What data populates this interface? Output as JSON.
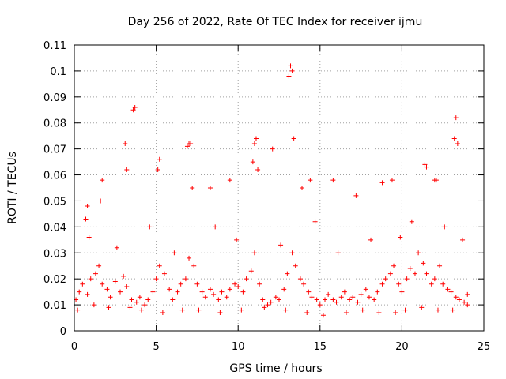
{
  "chart_data": {
    "type": "scatter",
    "title": "Day 256 of 2022, Rate Of TEC Index for receiver ijmu",
    "xlabel": "GPS time / hours",
    "ylabel": "ROTI / TECUs",
    "xlim": [
      0,
      25
    ],
    "ylim": [
      0,
      0.11
    ],
    "xticks": [
      "0",
      "5",
      "10",
      "15",
      "20",
      "25"
    ],
    "yticks": [
      "0",
      "0.01",
      "0.02",
      "0.03",
      "0.04",
      "0.05",
      "0.06",
      "0.07",
      "0.08",
      "0.09",
      "0.1",
      "0.11"
    ],
    "grid": true,
    "marker": "+",
    "color": "#ff0000",
    "series": [
      {
        "x": [
          0.1,
          0.3,
          0.5,
          0.8,
          1.0,
          1.3,
          1.5,
          1.7,
          2.0,
          2.2,
          2.5,
          2.8,
          3.0,
          3.2,
          3.5,
          3.8,
          4.0,
          4.3,
          4.5,
          4.8,
          5.0,
          5.2,
          5.5,
          5.8,
          6.0,
          6.3,
          6.5,
          6.8,
          7.0,
          7.3,
          7.5,
          7.8,
          8.0,
          8.3,
          8.5,
          8.8,
          9.0,
          9.3,
          9.5,
          9.8,
          10.0,
          10.3,
          10.5,
          10.8,
          11.0,
          11.3,
          11.5,
          11.8,
          12.0,
          12.3,
          12.5,
          12.8,
          13.0,
          13.3,
          13.5,
          13.8,
          14.0,
          14.3,
          14.5,
          14.8,
          15.0,
          15.3,
          15.5,
          15.8,
          16.0,
          16.3,
          16.5,
          16.8,
          17.0,
          17.3,
          17.5,
          17.8,
          18.0,
          18.3,
          18.5,
          18.8,
          19.0,
          19.3,
          19.5,
          19.8,
          20.0,
          20.3,
          20.5,
          20.8,
          21.0,
          21.3,
          21.5,
          21.8,
          22.0,
          22.3,
          22.5,
          22.8,
          23.0,
          23.3,
          23.5,
          23.8,
          24.0,
          0.7,
          0.8,
          1.6,
          1.7,
          3.1,
          3.2,
          3.6,
          3.7,
          5.1,
          5.2,
          6.9,
          7.0,
          7.1,
          7.2,
          8.3,
          9.5,
          10.9,
          11.0,
          11.1,
          11.2,
          12.1,
          13.1,
          13.2,
          13.3,
          13.4,
          13.9,
          14.4,
          15.8,
          17.2,
          18.8,
          19.4,
          21.4,
          21.5,
          22.0,
          22.1,
          23.2,
          23.3,
          23.4,
          0.9,
          2.6,
          4.6,
          6.1,
          8.6,
          9.9,
          12.6,
          14.7,
          16.1,
          18.1,
          19.9,
          20.6,
          22.6,
          23.7,
          0.2,
          1.2,
          2.1,
          3.4,
          4.1,
          5.4,
          6.6,
          7.6,
          8.9,
          10.2,
          11.6,
          12.9,
          14.2,
          15.2,
          16.6,
          17.6,
          18.6,
          19.6,
          20.2,
          21.2,
          22.2,
          23.1,
          24.0
        ],
        "y": [
          0.012,
          0.015,
          0.018,
          0.014,
          0.02,
          0.022,
          0.025,
          0.018,
          0.016,
          0.013,
          0.019,
          0.015,
          0.021,
          0.017,
          0.012,
          0.011,
          0.013,
          0.01,
          0.012,
          0.015,
          0.02,
          0.025,
          0.022,
          0.016,
          0.012,
          0.015,
          0.018,
          0.02,
          0.028,
          0.025,
          0.018,
          0.015,
          0.013,
          0.016,
          0.014,
          0.012,
          0.015,
          0.013,
          0.016,
          0.018,
          0.017,
          0.015,
          0.02,
          0.023,
          0.03,
          0.018,
          0.012,
          0.01,
          0.011,
          0.013,
          0.012,
          0.016,
          0.022,
          0.03,
          0.025,
          0.02,
          0.018,
          0.015,
          0.013,
          0.012,
          0.01,
          0.012,
          0.014,
          0.012,
          0.011,
          0.013,
          0.015,
          0.012,
          0.013,
          0.011,
          0.014,
          0.016,
          0.013,
          0.012,
          0.015,
          0.018,
          0.02,
          0.022,
          0.025,
          0.018,
          0.015,
          0.02,
          0.024,
          0.022,
          0.03,
          0.026,
          0.022,
          0.018,
          0.02,
          0.025,
          0.018,
          0.016,
          0.015,
          0.013,
          0.012,
          0.011,
          0.014,
          0.043,
          0.048,
          0.05,
          0.058,
          0.072,
          0.062,
          0.085,
          0.086,
          0.062,
          0.066,
          0.071,
          0.072,
          0.072,
          0.055,
          0.055,
          0.058,
          0.065,
          0.072,
          0.074,
          0.062,
          0.07,
          0.098,
          0.102,
          0.1,
          0.074,
          0.055,
          0.058,
          0.058,
          0.052,
          0.057,
          0.058,
          0.064,
          0.063,
          0.058,
          0.058,
          0.074,
          0.082,
          0.072,
          0.036,
          0.032,
          0.04,
          0.03,
          0.04,
          0.035,
          0.033,
          0.042,
          0.03,
          0.035,
          0.036,
          0.042,
          0.04,
          0.035,
          0.008,
          0.01,
          0.009,
          0.009,
          0.008,
          0.007,
          0.008,
          0.008,
          0.007,
          0.008,
          0.009,
          0.008,
          0.007,
          0.006,
          0.007,
          0.008,
          0.007,
          0.007,
          0.008,
          0.009,
          0.008,
          0.008,
          0.01
        ]
      }
    ]
  }
}
